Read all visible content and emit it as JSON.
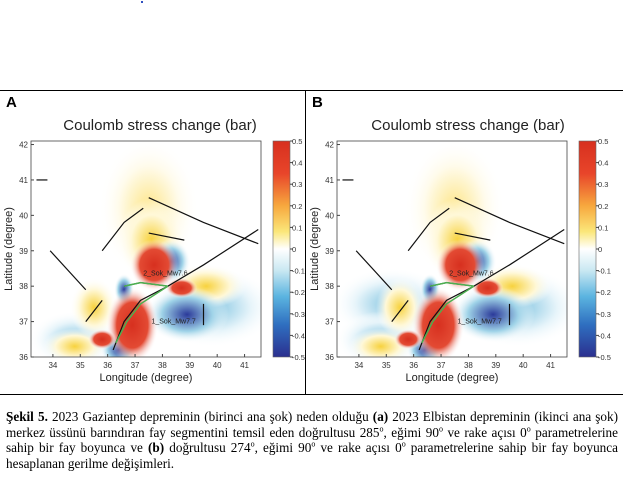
{
  "chart_data": [
    {
      "type": "heatmap",
      "panel": "A",
      "title": "Coulomb stress change (bar)",
      "xlabel": "Longitude (degree)",
      "ylabel": "Latitude (degree)",
      "xlim": [
        33.2,
        41.6
      ],
      "ylim": [
        36,
        42.1
      ],
      "xticks": [
        34,
        35,
        36,
        37,
        38,
        39,
        40,
        41
      ],
      "yticks": [
        36,
        37,
        38,
        39,
        40,
        41,
        42
      ],
      "colorbar": {
        "range": [
          -0.5,
          0.5
        ],
        "ticks": [
          "0.5",
          "0.4",
          "0.3",
          "0.2",
          "0.1",
          "0",
          "-0.1",
          "-0.2",
          "-0.3",
          "-0.4",
          "-0.5"
        ]
      },
      "annotations": [
        "2_Sok_Mw7.6",
        "1_Sok_Mw7.7"
      ]
    },
    {
      "type": "heatmap",
      "panel": "B",
      "title": "Coulomb stress change (bar)",
      "xlabel": "Longitude (degree)",
      "ylabel": "Latitude (degree)",
      "xlim": [
        33.2,
        41.6
      ],
      "ylim": [
        36,
        42.1
      ],
      "xticks": [
        34,
        35,
        36,
        37,
        38,
        39,
        40,
        41
      ],
      "yticks": [
        36,
        37,
        38,
        39,
        40,
        41,
        42
      ],
      "colorbar": {
        "range": [
          -0.5,
          0.5
        ],
        "ticks": [
          "0.5",
          "0.4",
          "0.3",
          "0.2",
          "0.1",
          "0",
          "-0.1",
          "-0.2",
          "-0.3",
          "-0.4",
          "-0.5"
        ]
      },
      "annotations": [
        "2_Sok_Mw7.6",
        "1_Sok_Mw7.7"
      ]
    }
  ],
  "panels": {
    "a_label": "A",
    "b_label": "B"
  },
  "caption": {
    "label": "Şekil 5.",
    "t1": " 2023 Gaziantep depreminin (birinci ana şok) neden olduğu ",
    "a": "(a)",
    "t2": " 2023 Elbistan depreminin (ikinci ana şok) merkez üssünü barındıran fay segmentini temsil eden doğrultusu 285",
    "deg": "o",
    "t3": ", eğimi 90",
    "t4": " ve rake açısı 0",
    "t5": " parametrelerine sahip bir fay boyunca ve ",
    "b": "(b)",
    "t6": " doğrultusu 274",
    "t7": ", eğimi 90",
    "t8": " ve rake açısı 0",
    "t9": " parametrelerine sahip bir fay boyunca hesaplanan gerilme değişimleri."
  }
}
